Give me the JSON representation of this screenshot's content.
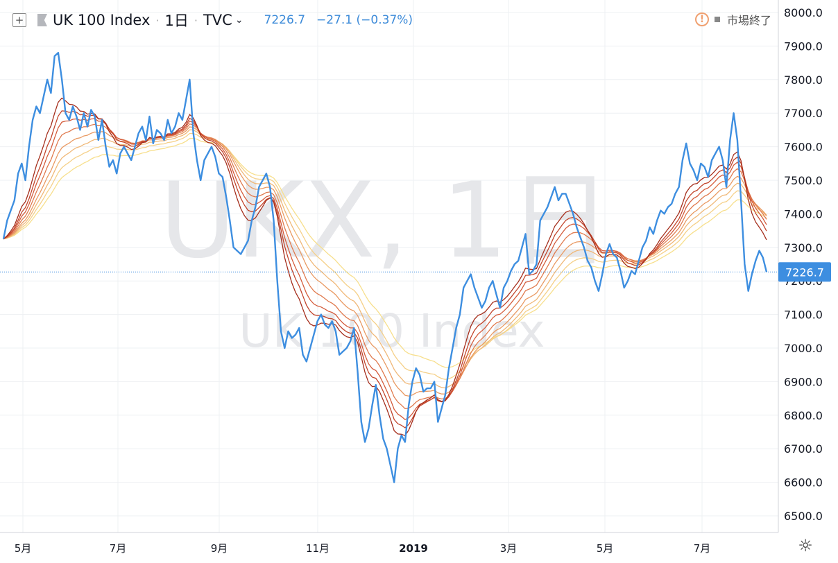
{
  "header": {
    "symbol_name": "UK 100 Index",
    "interval": "1日",
    "exchange": "TVC",
    "last_price": "7226.7",
    "change": "−27.1 (−0.37%)",
    "status": "市場終了",
    "add_icon": "plus-square-icon",
    "status_icon": "warning-circle-icon",
    "settings_icon": "gear-icon"
  },
  "watermark": {
    "line1": "UKX, 1日",
    "line2": "UK 100 Index"
  },
  "price_label": "7226.7",
  "colors": {
    "price_line": "#3d8ee0",
    "price_label_bg": "#3d8ee0",
    "grid": "#eef0f3",
    "ribbon": [
      "#a52e1c",
      "#c2452c",
      "#d45c3c",
      "#e07a4e",
      "#e99a63",
      "#f0b878",
      "#f5d088",
      "#f7df8c"
    ]
  },
  "chart_data": {
    "type": "line",
    "ylim": [
      6450,
      8050
    ],
    "y_ticks": [
      "6500.0",
      "6600.0",
      "6700.0",
      "6800.0",
      "6900.0",
      "7000.0",
      "7100.0",
      "7200.0",
      "7300.0",
      "7400.0",
      "7500.0",
      "7600.0",
      "7700.0",
      "7800.0",
      "7900.0",
      "8000.0"
    ],
    "x_ticks": [
      "5月",
      "7月",
      "9月",
      "11月",
      "2019",
      "3月",
      "5月",
      "7月"
    ],
    "last_value": 7226.7,
    "series": [
      {
        "values": [
          7325,
          7380,
          7410,
          7440,
          7520,
          7550,
          7500,
          7600,
          7680,
          7720,
          7700,
          7750,
          7800,
          7760,
          7870,
          7880,
          7800,
          7700,
          7680,
          7720,
          7690,
          7650,
          7700,
          7660,
          7710,
          7690,
          7620,
          7680,
          7600,
          7540,
          7560,
          7520,
          7580,
          7600,
          7580,
          7560,
          7600,
          7640,
          7660,
          7620,
          7690,
          7610,
          7650,
          7640,
          7620,
          7680,
          7640,
          7660,
          7700,
          7680,
          7740,
          7800,
          7640,
          7560,
          7500,
          7560,
          7580,
          7600,
          7570,
          7520,
          7510,
          7450,
          7380,
          7300,
          7290,
          7280,
          7300,
          7320,
          7380,
          7420,
          7480,
          7500,
          7520,
          7480,
          7380,
          7200,
          7050,
          7000,
          7050,
          7030,
          7040,
          7060,
          6980,
          6960,
          7000,
          7040,
          7080,
          7100,
          7070,
          7060,
          7080,
          7050,
          6980,
          6990,
          7000,
          7020,
          7060,
          6930,
          6780,
          6720,
          6760,
          6830,
          6890,
          6800,
          6730,
          6700,
          6650,
          6600,
          6700,
          6740,
          6720,
          6830,
          6900,
          6940,
          6920,
          6870,
          6880,
          6880,
          6900,
          6780,
          6820,
          6860,
          6940,
          7000,
          7060,
          7100,
          7180,
          7200,
          7220,
          7180,
          7150,
          7120,
          7140,
          7180,
          7200,
          7160,
          7120,
          7180,
          7200,
          7230,
          7250,
          7260,
          7300,
          7340,
          7220,
          7230,
          7250,
          7380,
          7400,
          7420,
          7450,
          7480,
          7440,
          7460,
          7460,
          7430,
          7400,
          7360,
          7330,
          7300,
          7260,
          7240,
          7200,
          7170,
          7220,
          7280,
          7310,
          7280,
          7270,
          7230,
          7180,
          7200,
          7230,
          7220,
          7260,
          7300,
          7320,
          7360,
          7340,
          7380,
          7410,
          7400,
          7420,
          7430,
          7460,
          7480,
          7560,
          7610,
          7550,
          7530,
          7500,
          7550,
          7540,
          7510,
          7560,
          7580,
          7600,
          7560,
          7480,
          7620,
          7700,
          7620,
          7440,
          7250,
          7170,
          7220,
          7260,
          7290,
          7270,
          7226.7
        ]
      }
    ]
  }
}
